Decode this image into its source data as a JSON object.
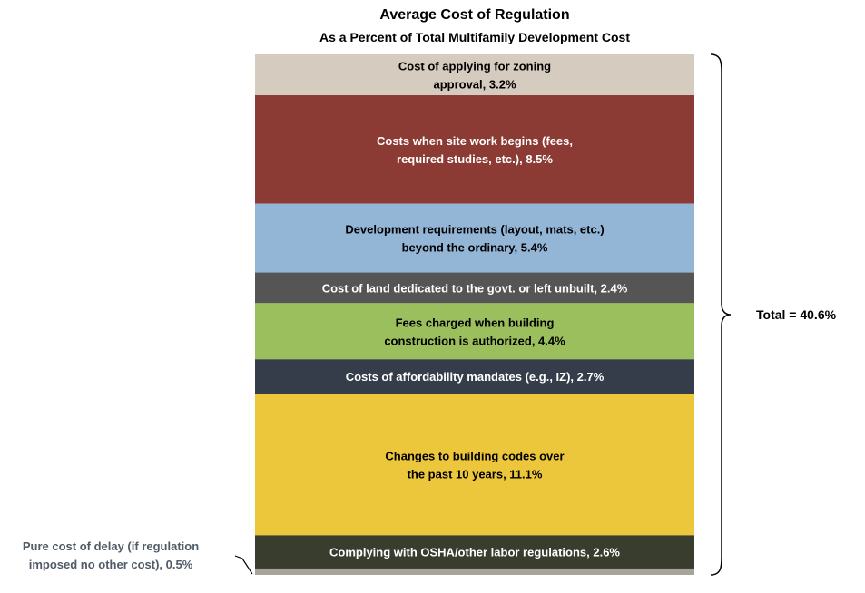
{
  "chart_data": {
    "type": "bar",
    "title": "Average Cost of Regulation",
    "subtitle": "As a Percent of Total Multifamily Development Cost",
    "stacked": true,
    "orientation": "vertical-stack",
    "segments": [
      {
        "label_lines": [
          "Cost of applying for zoning",
          "approval, 3.2%"
        ],
        "value": 3.2,
        "color": "#d5cbbe",
        "text_color": "#000000"
      },
      {
        "label_lines": [
          "Costs when site work begins (fees,",
          "required studies, etc.), 8.5%"
        ],
        "value": 8.5,
        "color": "#8b3a34",
        "text_color": "#ffffff"
      },
      {
        "label_lines": [
          "Development requirements (layout, mats, etc.)",
          "beyond the ordinary, 5.4%"
        ],
        "value": 5.4,
        "color": "#93b5d6",
        "text_color": "#000000"
      },
      {
        "label_lines": [
          "Cost of land dedicated to the govt. or left unbuilt, 2.4%"
        ],
        "value": 2.4,
        "color": "#555555",
        "text_color": "#ffffff"
      },
      {
        "label_lines": [
          "Fees charged when building",
          "construction is authorized, 4.4%"
        ],
        "value": 4.4,
        "color": "#9bbf5c",
        "text_color": "#000000"
      },
      {
        "label_lines": [
          "Costs of affordability mandates (e.g., IZ), 2.7%"
        ],
        "value": 2.7,
        "color": "#363d4a",
        "text_color": "#ffffff"
      },
      {
        "label_lines": [
          "Changes to building codes over",
          "the past 10 years, 11.1%"
        ],
        "value": 11.1,
        "color": "#edc73b",
        "text_color": "#000000"
      },
      {
        "label_lines": [
          "Complying with OSHA/other labor regulations, 2.6%"
        ],
        "value": 2.6,
        "color": "#393d2e",
        "text_color": "#ffffff"
      },
      {
        "label_lines": [],
        "value": 0.5,
        "color": "#a8a39b",
        "text_color": "#000000"
      }
    ],
    "side_annotation": {
      "lines": [
        "Pure cost of delay (if regulation",
        "imposed no other cost), 0.5%"
      ]
    },
    "total_label": "Total = 40.6%"
  }
}
